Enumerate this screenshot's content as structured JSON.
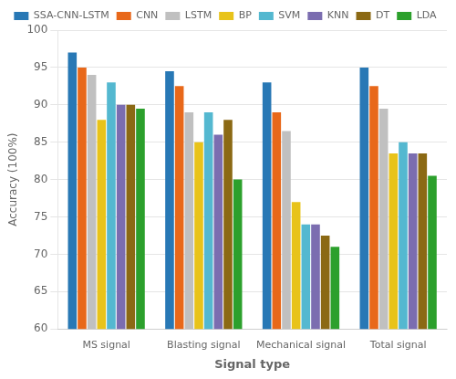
{
  "chart_data": {
    "type": "bar",
    "categories": [
      "MS signal",
      "Blasting signal",
      "Mechanical signal",
      "Total signal"
    ],
    "series": [
      {
        "name": "SSA-CNN-LSTM",
        "color": "#2878b5",
        "values": [
          97.0,
          94.5,
          93.0,
          95.0
        ]
      },
      {
        "name": "CNN",
        "color": "#e8681a",
        "values": [
          95.0,
          92.5,
          89.0,
          92.5
        ]
      },
      {
        "name": "LSTM",
        "color": "#c0c0c0",
        "values": [
          94.0,
          89.0,
          86.5,
          89.5
        ]
      },
      {
        "name": "BP",
        "color": "#e8c31a",
        "values": [
          88.0,
          85.0,
          77.0,
          83.5
        ]
      },
      {
        "name": "SVM",
        "color": "#54b8d0",
        "values": [
          93.0,
          89.0,
          74.0,
          85.0
        ]
      },
      {
        "name": "KNN",
        "color": "#7b6db0",
        "values": [
          90.0,
          86.0,
          74.0,
          83.5
        ]
      },
      {
        "name": "DT",
        "color": "#8b6914",
        "values": [
          90.0,
          88.0,
          72.5,
          83.5
        ]
      },
      {
        "name": "LDA",
        "color": "#2ca02c",
        "values": [
          89.5,
          80.0,
          71.0,
          80.5
        ]
      }
    ],
    "xlabel": "Signal type",
    "ylabel": "Accuracy (100%)",
    "ylim": [
      60,
      100
    ],
    "yticks": [
      60,
      65,
      70,
      75,
      80,
      85,
      90,
      95,
      100
    ],
    "grid": true,
    "legend": "top"
  }
}
